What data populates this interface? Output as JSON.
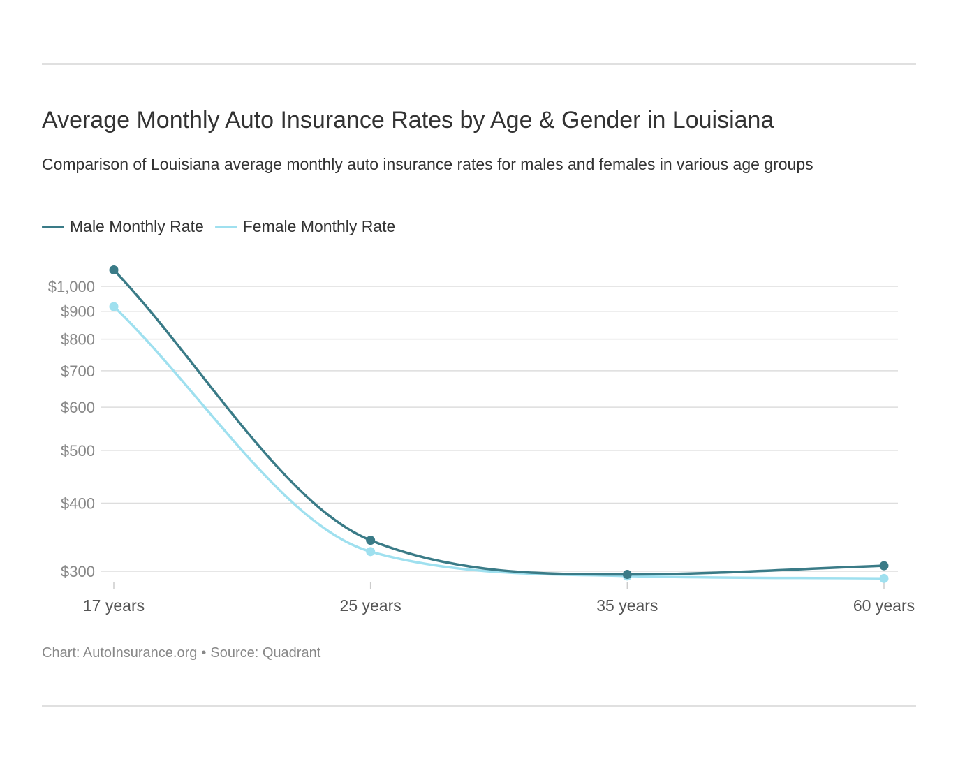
{
  "header": {
    "title": "Average Monthly Auto Insurance Rates by Age & Gender in Louisiana",
    "subtitle": "Comparison of Louisiana average monthly auto insurance rates for males and females in various age groups"
  },
  "footer": {
    "chart_credit": "Chart: AutoInsurance.org",
    "separator": "•",
    "source": "Source: Quadrant"
  },
  "colors": {
    "male": "#3a7b87",
    "female": "#9fe0ef",
    "grid": "#dddddd",
    "rule": "#e0e0e0"
  },
  "chart_data": {
    "type": "line",
    "title": "Average Monthly Auto Insurance Rates by Age & Gender in Louisiana",
    "subtitle": "Comparison of Louisiana average monthly auto insurance rates for males and females in various age groups",
    "categories": [
      "17 years",
      "25 years",
      "35 years",
      "60 years"
    ],
    "series": [
      {
        "name": "Male Monthly Rate",
        "values": [
          1072,
          342,
          296,
          307
        ],
        "color": "#3a7b87"
      },
      {
        "name": "Female Monthly Rate",
        "values": [
          918,
          326,
          294,
          291
        ],
        "color": "#9fe0ef"
      }
    ],
    "y_scale": "log",
    "y_ticks": [
      300,
      400,
      500,
      600,
      700,
      800,
      900,
      1000
    ],
    "y_tick_labels": [
      "$300",
      "$400",
      "$500",
      "$600",
      "$700",
      "$800",
      "$900",
      "$1,000"
    ],
    "xlabel": "",
    "ylabel": "",
    "grid": true,
    "legend_position": "top-left",
    "curve": "smooth",
    "markers": true
  }
}
